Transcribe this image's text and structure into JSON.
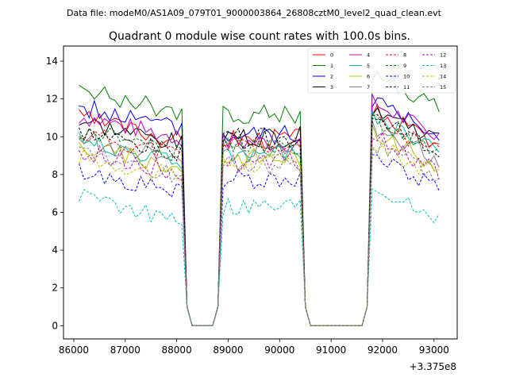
{
  "figure": {
    "suptitle": "Data file: modeM0/AS1A09_079T01_9000003864_26808cztM0_level2_quad_clean.evt",
    "title": "Quadrant 0 module wise count rates with 100.0s bins.",
    "x_offset_label": "+3.375e8"
  },
  "chart_data": {
    "type": "line",
    "xlim": [
      85800,
      93450
    ],
    "ylim": [
      -0.7,
      14.8
    ],
    "x_ticks": [
      86000,
      87000,
      88000,
      89000,
      90000,
      91000,
      92000,
      93000
    ],
    "x_tick_labels": [
      "86000",
      "87000",
      "88000",
      "89000",
      "90000",
      "91000",
      "92000",
      "93000"
    ],
    "y_ticks": [
      0,
      2,
      4,
      6,
      8,
      10,
      12,
      14
    ],
    "y_tick_labels": [
      "0",
      "2",
      "4",
      "6",
      "8",
      "10",
      "12",
      "14"
    ],
    "x_offset": 337500000,
    "legend_location": "upper-right",
    "legend_columns": 4,
    "segments": [
      {
        "start": 86100,
        "end": 88100
      },
      {
        "start": 88900,
        "end": 90400
      },
      {
        "start": 91800,
        "end": 93100
      }
    ],
    "gaps": [
      {
        "start": 88200,
        "end": 88800
      },
      {
        "start": 90500,
        "end": 91700
      }
    ],
    "series": [
      {
        "name": "0",
        "color": "#ff0000",
        "style": "solid",
        "levels": [
          11.0,
          9.9,
          11.4
        ]
      },
      {
        "name": "1",
        "color": "#008000",
        "style": "solid",
        "levels": [
          12.5,
          11.2,
          13.3
        ]
      },
      {
        "name": "2",
        "color": "#0000ff",
        "style": "solid",
        "levels": [
          11.6,
          10.1,
          12.0
        ]
      },
      {
        "name": "3",
        "color": "#000000",
        "style": "solid",
        "levels": [
          10.8,
          10.0,
          11.6
        ]
      },
      {
        "name": "4",
        "color": "#bf00bf",
        "style": "solid",
        "levels": [
          11.1,
          9.7,
          11.8
        ]
      },
      {
        "name": "5",
        "color": "#00bf9f",
        "style": "solid",
        "levels": [
          9.8,
          9.1,
          11.0
        ]
      },
      {
        "name": "6",
        "color": "#bfbf00",
        "style": "solid",
        "levels": [
          9.5,
          8.9,
          10.3
        ]
      },
      {
        "name": "7",
        "color": "#7f7f7f",
        "style": "solid",
        "levels": [
          9.9,
          9.3,
          10.6
        ]
      },
      {
        "name": "8",
        "color": "#ff0000",
        "style": "dashed",
        "levels": [
          10.2,
          9.5,
          10.9
        ]
      },
      {
        "name": "9",
        "color": "#008000",
        "style": "dashed",
        "levels": [
          10.3,
          9.6,
          11.0
        ]
      },
      {
        "name": "10",
        "color": "#0000ff",
        "style": "dashed",
        "levels": [
          8.2,
          7.8,
          9.0
        ]
      },
      {
        "name": "11",
        "color": "#000000",
        "style": "dashed",
        "levels": [
          10.3,
          9.9,
          11.0
        ]
      },
      {
        "name": "12",
        "color": "#bf00bf",
        "style": "dashed",
        "levels": [
          9.3,
          8.6,
          10.0
        ]
      },
      {
        "name": "13",
        "color": "#00bfbf",
        "style": "dashed",
        "levels": [
          6.8,
          6.3,
          7.4
        ]
      },
      {
        "name": "14",
        "color": "#bfbf00",
        "style": "dashed",
        "levels": [
          9.0,
          8.6,
          9.7
        ]
      },
      {
        "name": "15",
        "color": "#7f7f7f",
        "style": "dashed",
        "levels": [
          9.1,
          8.5,
          9.7
        ]
      }
    ]
  }
}
